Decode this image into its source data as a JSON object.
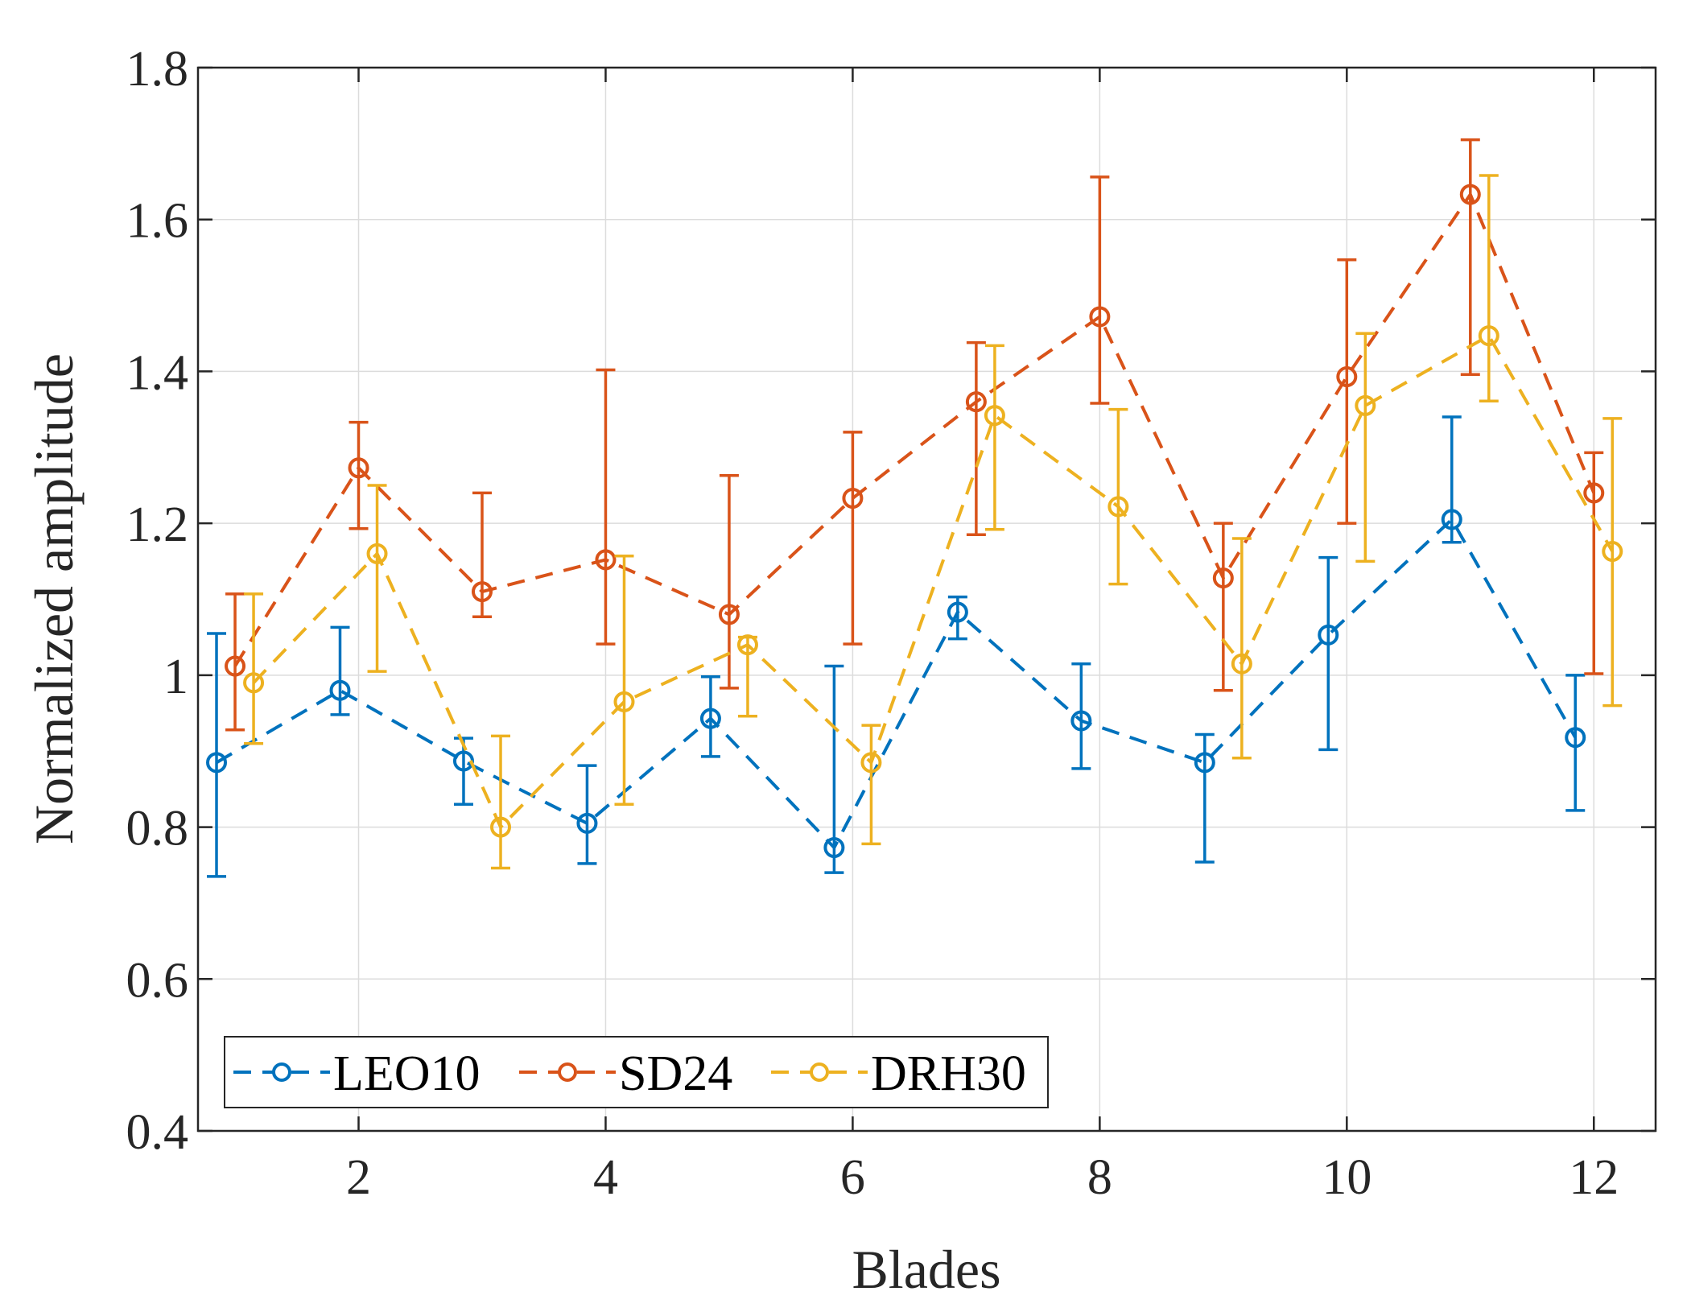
{
  "chart_data": {
    "type": "line",
    "title": "",
    "xlabel": "Blades",
    "ylabel": "Normalized amplitude",
    "xlim": [
      0.7,
      12.5
    ],
    "ylim": [
      0.4,
      1.8
    ],
    "grid": true,
    "legend_position": "bottom-left",
    "line_style": "dashed",
    "marker": "circle",
    "error_bars": true,
    "x_ticks": [
      2,
      4,
      6,
      8,
      10,
      12
    ],
    "x_tick_labels": [
      "2",
      "4",
      "6",
      "8",
      "10",
      "12"
    ],
    "y_ticks": [
      0.4,
      0.6,
      0.8,
      1.0,
      1.2,
      1.4,
      1.6,
      1.8
    ],
    "y_tick_labels": [
      "0.4",
      "0.6",
      "0.8",
      "1",
      "1.2",
      "1.4",
      "1.6",
      "1.8"
    ],
    "series": [
      {
        "name": "LEO10",
        "color": "#0072BD",
        "x": [
          0.85,
          1.85,
          2.85,
          3.85,
          4.85,
          5.85,
          6.85,
          7.85,
          8.85,
          9.85,
          10.85,
          11.85
        ],
        "y": [
          0.885,
          0.98,
          0.887,
          0.805,
          0.943,
          0.773,
          1.083,
          0.94,
          0.885,
          1.053,
          1.205,
          0.918
        ],
        "lower": [
          0.735,
          0.948,
          0.83,
          0.752,
          0.893,
          0.74,
          1.048,
          0.877,
          0.754,
          0.902,
          1.175,
          0.822
        ],
        "upper": [
          1.055,
          1.063,
          0.917,
          0.881,
          0.998,
          1.012,
          1.103,
          1.015,
          0.922,
          1.155,
          1.34,
          1.0
        ]
      },
      {
        "name": "SD24",
        "color": "#D95319",
        "x": [
          1.0,
          2.0,
          3.0,
          4.0,
          5.0,
          6.0,
          7.0,
          8.0,
          9.0,
          10.0,
          11.0,
          12.0
        ],
        "y": [
          1.012,
          1.273,
          1.11,
          1.152,
          1.08,
          1.233,
          1.36,
          1.472,
          1.128,
          1.393,
          1.633,
          1.24
        ],
        "lower": [
          0.928,
          1.193,
          1.077,
          1.041,
          0.983,
          1.041,
          1.185,
          1.358,
          0.98,
          1.2,
          1.396,
          1.002
        ],
        "upper": [
          1.107,
          1.333,
          1.24,
          1.402,
          1.263,
          1.32,
          1.438,
          1.656,
          1.2,
          1.547,
          1.705,
          1.293
        ]
      },
      {
        "name": "DRH30",
        "color": "#EDB120",
        "x": [
          1.15,
          2.15,
          3.15,
          4.15,
          5.15,
          6.15,
          7.15,
          8.15,
          9.15,
          10.15,
          11.15,
          12.15
        ],
        "y": [
          0.99,
          1.16,
          0.8,
          0.965,
          1.04,
          0.885,
          1.342,
          1.222,
          1.015,
          1.355,
          1.447,
          1.163
        ],
        "lower": [
          0.91,
          1.005,
          0.746,
          0.83,
          0.946,
          0.778,
          1.192,
          1.12,
          0.891,
          1.15,
          1.361,
          0.96
        ],
        "upper": [
          1.107,
          1.25,
          0.92,
          1.157,
          1.05,
          0.934,
          1.434,
          1.35,
          1.18,
          1.45,
          1.658,
          1.338
        ]
      }
    ]
  }
}
